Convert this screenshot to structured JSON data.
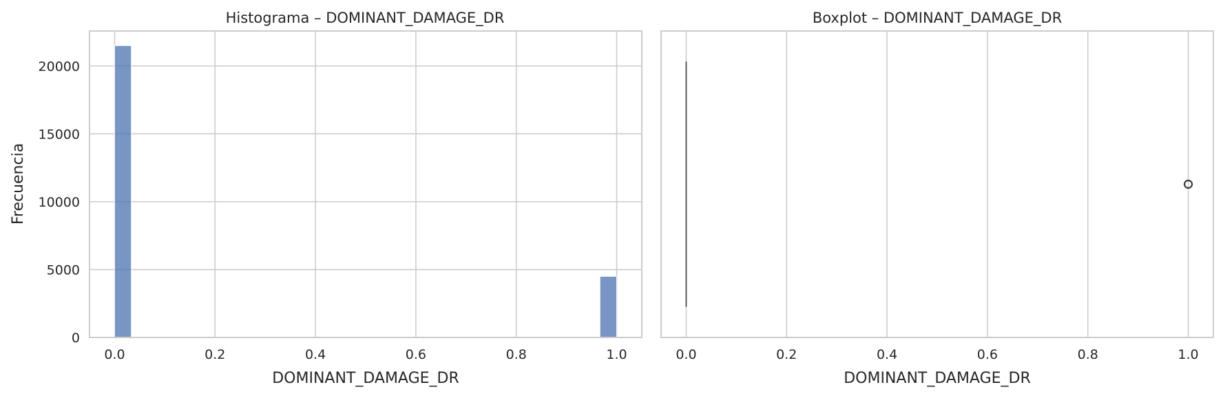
{
  "chart_data": [
    {
      "type": "bar",
      "title": "Histograma – DOMINANT_DAMAGE_DR",
      "xlabel": "DOMINANT_DAMAGE_DR",
      "ylabel": "Frecuencia",
      "xlim": [
        -0.05,
        1.05
      ],
      "ylim": [
        0,
        22575
      ],
      "xticks": [
        "0.0",
        "0.2",
        "0.4",
        "0.6",
        "0.8",
        "1.0"
      ],
      "yticks": [
        "0",
        "5000",
        "10000",
        "15000",
        "20000"
      ],
      "grid": true,
      "bins": [
        {
          "x0": 0.0,
          "x1": 0.0333,
          "value": 21500
        },
        {
          "x0": 0.9667,
          "x1": 1.0,
          "value": 4500
        }
      ],
      "color": "#4c72b0"
    },
    {
      "type": "boxplot",
      "title": "Boxplot – DOMINANT_DAMAGE_DR",
      "xlabel": "DOMINANT_DAMAGE_DR",
      "xlim": [
        -0.05,
        1.05
      ],
      "xticks": [
        "0.0",
        "0.2",
        "0.4",
        "0.6",
        "0.8",
        "1.0"
      ],
      "grid": true,
      "box": {
        "q1": 0,
        "median": 0,
        "q3": 0,
        "whisker_low": 0,
        "whisker_high": 0
      },
      "outliers": [
        1.0
      ],
      "color": "#4c72b0"
    }
  ]
}
